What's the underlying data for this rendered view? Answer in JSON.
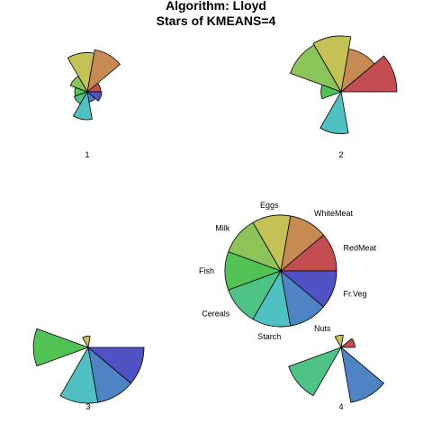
{
  "chart_data": {
    "type": "star",
    "title": "Algorithm: Lloyd",
    "subtitle": "Stars of KMEANS=4",
    "variables": [
      "RedMeat",
      "WhiteMeat",
      "Eggs",
      "Milk",
      "Fish",
      "Cereals",
      "Starch",
      "Nuts",
      "Fr.Veg"
    ],
    "colors": [
      "#C34D51",
      "#C68A52",
      "#C5C255",
      "#8BC459",
      "#50C354",
      "#4DC386",
      "#4FC1C3",
      "#4E84C3",
      "#5052C4"
    ],
    "key_label_colors": [
      "#000000",
      "#000000",
      "#000000",
      "#000000",
      "#000000",
      "#000000",
      "#000000",
      "#000000",
      "#000000"
    ],
    "stars": [
      {
        "label": "1",
        "values": [
          0.3,
          0.95,
          0.87,
          0.4,
          0.28,
          0.31,
          0.62,
          0.23,
          0.32
        ]
      },
      {
        "label": "2",
        "values": [
          1.0,
          0.78,
          1.0,
          0.97,
          0.36,
          0.0,
          0.75,
          0.0,
          0.0
        ]
      },
      {
        "label": "3",
        "values": [
          0.0,
          0.0,
          0.2,
          0.0,
          0.98,
          0.0,
          1.0,
          1.0,
          1.0
        ]
      },
      {
        "label": "4",
        "values": [
          0.25,
          0.0,
          0.22,
          0.0,
          0.0,
          1.0,
          0.0,
          1.0,
          0.0
        ]
      }
    ]
  }
}
